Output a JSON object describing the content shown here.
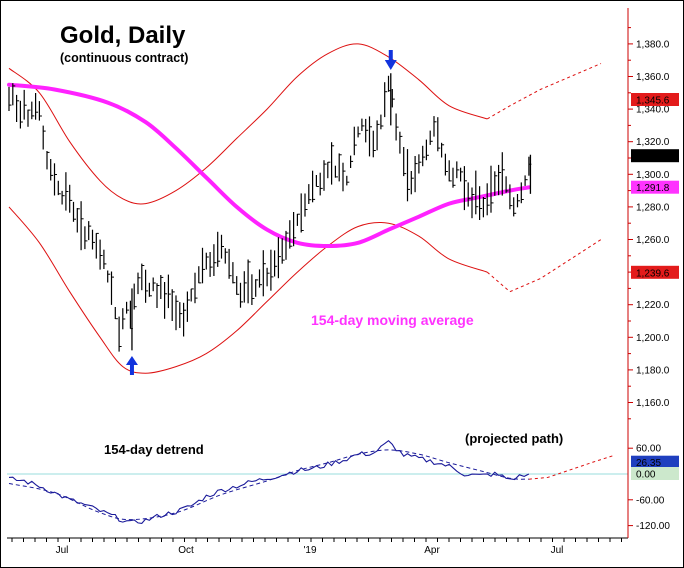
{
  "colors": {
    "background": "#ffffff",
    "frame": "#000000",
    "axis": "#cc0000",
    "price_bars": "#000000",
    "moving_average": "#ff22ff",
    "bands": "#dd1111",
    "detrend_line": "#1a1a9a",
    "detrend_smooth": "#1a1a9a",
    "zero_line": "#99dddd",
    "arrows": "#1133dd",
    "label_red": "#e31b1b",
    "label_black": "#000000",
    "label_magenta": "#ff33ff",
    "label_blue": "#1f3fbf",
    "label_green": "#cce8cc"
  },
  "chart_data": [
    {
      "type": "ohlc",
      "title": "Gold, Daily",
      "subtitle": "(continuous contract)",
      "x_tick_labels": [
        "Jul",
        "Oct",
        "'19",
        "Apr",
        "Jul"
      ],
      "y_tick_labels": [
        "1,160.0",
        "1,180.0",
        "1,200.0",
        "1,220.0",
        "1,240.0",
        "1,260.0",
        "1,280.0",
        "1,300.0",
        "1,320.0",
        "1,340.0",
        "1,360.0",
        "1,380.0"
      ],
      "ylim": [
        1140,
        1395
      ],
      "bars_week_steps": [
        [
          0,
          1345
        ],
        [
          0.5,
          1348
        ],
        [
          1,
          1340
        ],
        [
          1.5,
          1338
        ],
        [
          2,
          1344
        ],
        [
          2.5,
          1336
        ],
        [
          3,
          1340
        ],
        [
          3.5,
          1342
        ],
        [
          4,
          1338
        ],
        [
          4.5,
          1322
        ],
        [
          5,
          1308
        ],
        [
          5.5,
          1302
        ],
        [
          6,
          1298
        ],
        [
          6.5,
          1292
        ],
        [
          7,
          1286
        ],
        [
          7.5,
          1290
        ],
        [
          8,
          1284
        ],
        [
          8.5,
          1278
        ],
        [
          9,
          1272
        ],
        [
          9.5,
          1268
        ],
        [
          10,
          1262
        ],
        [
          10.5,
          1266
        ],
        [
          11,
          1258
        ],
        [
          11.5,
          1255
        ],
        [
          12,
          1250
        ],
        [
          12.5,
          1248
        ],
        [
          13,
          1238
        ],
        [
          13.5,
          1228
        ],
        [
          14,
          1215
        ],
        [
          14.5,
          1202
        ],
        [
          15,
          1212
        ],
        [
          15.5,
          1218
        ],
        [
          16,
          1214
        ],
        [
          16.5,
          1226
        ],
        [
          17,
          1232
        ],
        [
          17.5,
          1236
        ],
        [
          18,
          1230
        ],
        [
          18.5,
          1228
        ],
        [
          19,
          1232
        ],
        [
          19.5,
          1226
        ],
        [
          20,
          1230
        ],
        [
          20.5,
          1224
        ],
        [
          21,
          1228
        ],
        [
          21.5,
          1220
        ],
        [
          22,
          1214
        ],
        [
          22.5,
          1216
        ],
        [
          23,
          1212
        ],
        [
          23.5,
          1220
        ],
        [
          24,
          1226
        ],
        [
          24.5,
          1232
        ],
        [
          25,
          1238
        ],
        [
          25.5,
          1242
        ],
        [
          26,
          1246
        ],
        [
          26.5,
          1244
        ],
        [
          27,
          1248
        ],
        [
          27.5,
          1252
        ],
        [
          28,
          1256
        ],
        [
          28.5,
          1250
        ],
        [
          29,
          1246
        ],
        [
          29.5,
          1240
        ],
        [
          30,
          1232
        ],
        [
          30.5,
          1226
        ],
        [
          31,
          1230
        ],
        [
          31.5,
          1232
        ],
        [
          32,
          1228
        ],
        [
          32.5,
          1230
        ],
        [
          33,
          1236
        ],
        [
          33.5,
          1240
        ],
        [
          34,
          1236
        ],
        [
          34.5,
          1240
        ],
        [
          35,
          1244
        ],
        [
          35.5,
          1248
        ],
        [
          36,
          1252
        ],
        [
          36.5,
          1256
        ],
        [
          37,
          1262
        ],
        [
          37.5,
          1266
        ],
        [
          38,
          1272
        ],
        [
          38.5,
          1276
        ],
        [
          39,
          1282
        ],
        [
          39.5,
          1288
        ],
        [
          40,
          1292
        ],
        [
          40.5,
          1296
        ],
        [
          41,
          1294
        ],
        [
          41.5,
          1300
        ],
        [
          42,
          1304
        ],
        [
          42.5,
          1306
        ],
        [
          43,
          1302
        ],
        [
          43.5,
          1304
        ],
        [
          44,
          1300
        ],
        [
          44.5,
          1296
        ],
        [
          45,
          1308
        ],
        [
          45.5,
          1318
        ],
        [
          46,
          1326
        ],
        [
          46.5,
          1330
        ],
        [
          47,
          1326
        ],
        [
          47.5,
          1322
        ],
        [
          48,
          1320
        ],
        [
          48.5,
          1324
        ],
        [
          49,
          1332
        ],
        [
          49.5,
          1344
        ],
        [
          50,
          1356
        ],
        [
          50.5,
          1346
        ],
        [
          51,
          1328
        ],
        [
          51.5,
          1318
        ],
        [
          52,
          1308
        ],
        [
          52.5,
          1300
        ],
        [
          53,
          1296
        ],
        [
          53.5,
          1300
        ],
        [
          54,
          1306
        ],
        [
          54.5,
          1310
        ],
        [
          55,
          1316
        ],
        [
          55.5,
          1322
        ],
        [
          56,
          1328
        ],
        [
          56.5,
          1326
        ],
        [
          57,
          1316
        ],
        [
          57.5,
          1306
        ],
        [
          58,
          1300
        ],
        [
          58.5,
          1298
        ],
        [
          59,
          1302
        ],
        [
          59.5,
          1300
        ],
        [
          60,
          1294
        ],
        [
          60.5,
          1288
        ],
        [
          61,
          1282
        ],
        [
          61.5,
          1286
        ],
        [
          62,
          1284
        ],
        [
          62.5,
          1280
        ],
        [
          63,
          1286
        ],
        [
          63.5,
          1290
        ],
        [
          64,
          1294
        ],
        [
          64.5,
          1298
        ],
        [
          65,
          1300
        ],
        [
          65.5,
          1294
        ],
        [
          66,
          1286
        ],
        [
          66.5,
          1280
        ],
        [
          67,
          1284
        ],
        [
          67.5,
          1290
        ],
        [
          68,
          1296
        ],
        [
          68.5,
          1304
        ]
      ],
      "labels": [
        {
          "text": "1,345.6",
          "value": 1345.6,
          "color_key": "label_red"
        },
        {
          "text": "1,311.1",
          "value": 1311.1,
          "color_key": "label_black"
        },
        {
          "text": "1,291.8",
          "value": 1291.8,
          "color_key": "label_magenta"
        },
        {
          "text": "1,239.6",
          "value": 1239.6,
          "color_key": "label_red"
        }
      ],
      "moving_average": {
        "name": "154-day moving average",
        "points": [
          [
            0,
            1355
          ],
          [
            6,
            1352
          ],
          [
            13,
            1344
          ],
          [
            18,
            1332
          ],
          [
            22,
            1316
          ],
          [
            26,
            1298
          ],
          [
            30,
            1280
          ],
          [
            34,
            1266
          ],
          [
            38,
            1258
          ],
          [
            42,
            1256
          ],
          [
            46,
            1258
          ],
          [
            50,
            1266
          ],
          [
            54,
            1274
          ],
          [
            58,
            1282
          ],
          [
            62,
            1286
          ],
          [
            66,
            1290
          ],
          [
            68.5,
            1292
          ]
        ]
      },
      "upper_band": {
        "points": [
          [
            0,
            1365
          ],
          [
            4,
            1350
          ],
          [
            8,
            1320
          ],
          [
            12,
            1296
          ],
          [
            15,
            1285
          ],
          [
            18,
            1282
          ],
          [
            22,
            1290
          ],
          [
            26,
            1304
          ],
          [
            30,
            1322
          ],
          [
            34,
            1340
          ],
          [
            38,
            1360
          ],
          [
            42,
            1374
          ],
          [
            46,
            1380
          ],
          [
            50,
            1372
          ],
          [
            54,
            1358
          ],
          [
            58,
            1342
          ],
          [
            63,
            1334
          ]
        ]
      },
      "upper_projection": {
        "points": [
          [
            63,
            1334
          ],
          [
            66,
            1342
          ],
          [
            70,
            1352
          ],
          [
            74,
            1360
          ],
          [
            78,
            1368
          ]
        ]
      },
      "lower_band": {
        "points": [
          [
            0,
            1280
          ],
          [
            4,
            1258
          ],
          [
            8,
            1228
          ],
          [
            12,
            1200
          ],
          [
            15,
            1182
          ],
          [
            18,
            1178
          ],
          [
            22,
            1182
          ],
          [
            26,
            1190
          ],
          [
            30,
            1204
          ],
          [
            34,
            1222
          ],
          [
            38,
            1240
          ],
          [
            42,
            1256
          ],
          [
            46,
            1268
          ],
          [
            50,
            1270
          ],
          [
            54,
            1262
          ],
          [
            58,
            1248
          ],
          [
            63,
            1240
          ]
        ]
      },
      "lower_projection": {
        "points": [
          [
            63,
            1240
          ],
          [
            66,
            1228
          ],
          [
            70,
            1236
          ],
          [
            74,
            1248
          ],
          [
            78,
            1260
          ]
        ]
      },
      "arrows": [
        {
          "direction": "up",
          "x_week": 16.2,
          "value": 1186
        },
        {
          "direction": "down",
          "x_week": 50.3,
          "value": 1370
        }
      ],
      "annotations": [
        "154-day moving average"
      ]
    },
    {
      "type": "line",
      "title": "154-day detrend",
      "y_tick_labels": [
        "60.00",
        "-60.00",
        "-120.00"
      ],
      "ylim": [
        -140,
        110
      ],
      "zero_line": 0,
      "annotations": [
        "(projected path)"
      ],
      "labels": [
        {
          "text": "26.35",
          "value": 26.35,
          "color_key": "label_blue"
        },
        {
          "text": "0.00",
          "value": 0,
          "color_key": "label_green"
        }
      ],
      "detrend_series": {
        "points": [
          [
            0,
            -12
          ],
          [
            2,
            -16
          ],
          [
            4,
            -28
          ],
          [
            6,
            -44
          ],
          [
            8,
            -60
          ],
          [
            10,
            -72
          ],
          [
            12,
            -86
          ],
          [
            14,
            -100
          ],
          [
            16,
            -114
          ],
          [
            18,
            -108
          ],
          [
            20,
            -96
          ],
          [
            22,
            -88
          ],
          [
            24,
            -74
          ],
          [
            26,
            -52
          ],
          [
            28,
            -38
          ],
          [
            30,
            -28
          ],
          [
            32,
            -18
          ],
          [
            34,
            -10
          ],
          [
            36,
            -2
          ],
          [
            38,
            8
          ],
          [
            40,
            12
          ],
          [
            42,
            22
          ],
          [
            44,
            32
          ],
          [
            46,
            46
          ],
          [
            48,
            48
          ],
          [
            50,
            74
          ],
          [
            52,
            44
          ],
          [
            54,
            36
          ],
          [
            56,
            28
          ],
          [
            58,
            18
          ],
          [
            60,
            0
          ],
          [
            62,
            -4
          ],
          [
            64,
            0
          ],
          [
            66,
            -12
          ],
          [
            68.5,
            0
          ]
        ]
      },
      "smooth_series": {
        "points": [
          [
            0,
            -22
          ],
          [
            6,
            -44
          ],
          [
            12,
            -90
          ],
          [
            16,
            -106
          ],
          [
            22,
            -90
          ],
          [
            28,
            -48
          ],
          [
            34,
            -16
          ],
          [
            38,
            8
          ],
          [
            42,
            26
          ],
          [
            46,
            46
          ],
          [
            50,
            56
          ],
          [
            54,
            46
          ],
          [
            58,
            26
          ],
          [
            62,
            8
          ],
          [
            66,
            -10
          ],
          [
            68.5,
            -12
          ]
        ]
      },
      "projection": {
        "points": [
          [
            68.5,
            -12
          ],
          [
            71,
            -8
          ],
          [
            74,
            10
          ],
          [
            77,
            28
          ],
          [
            79.5,
            42
          ]
        ]
      }
    }
  ]
}
